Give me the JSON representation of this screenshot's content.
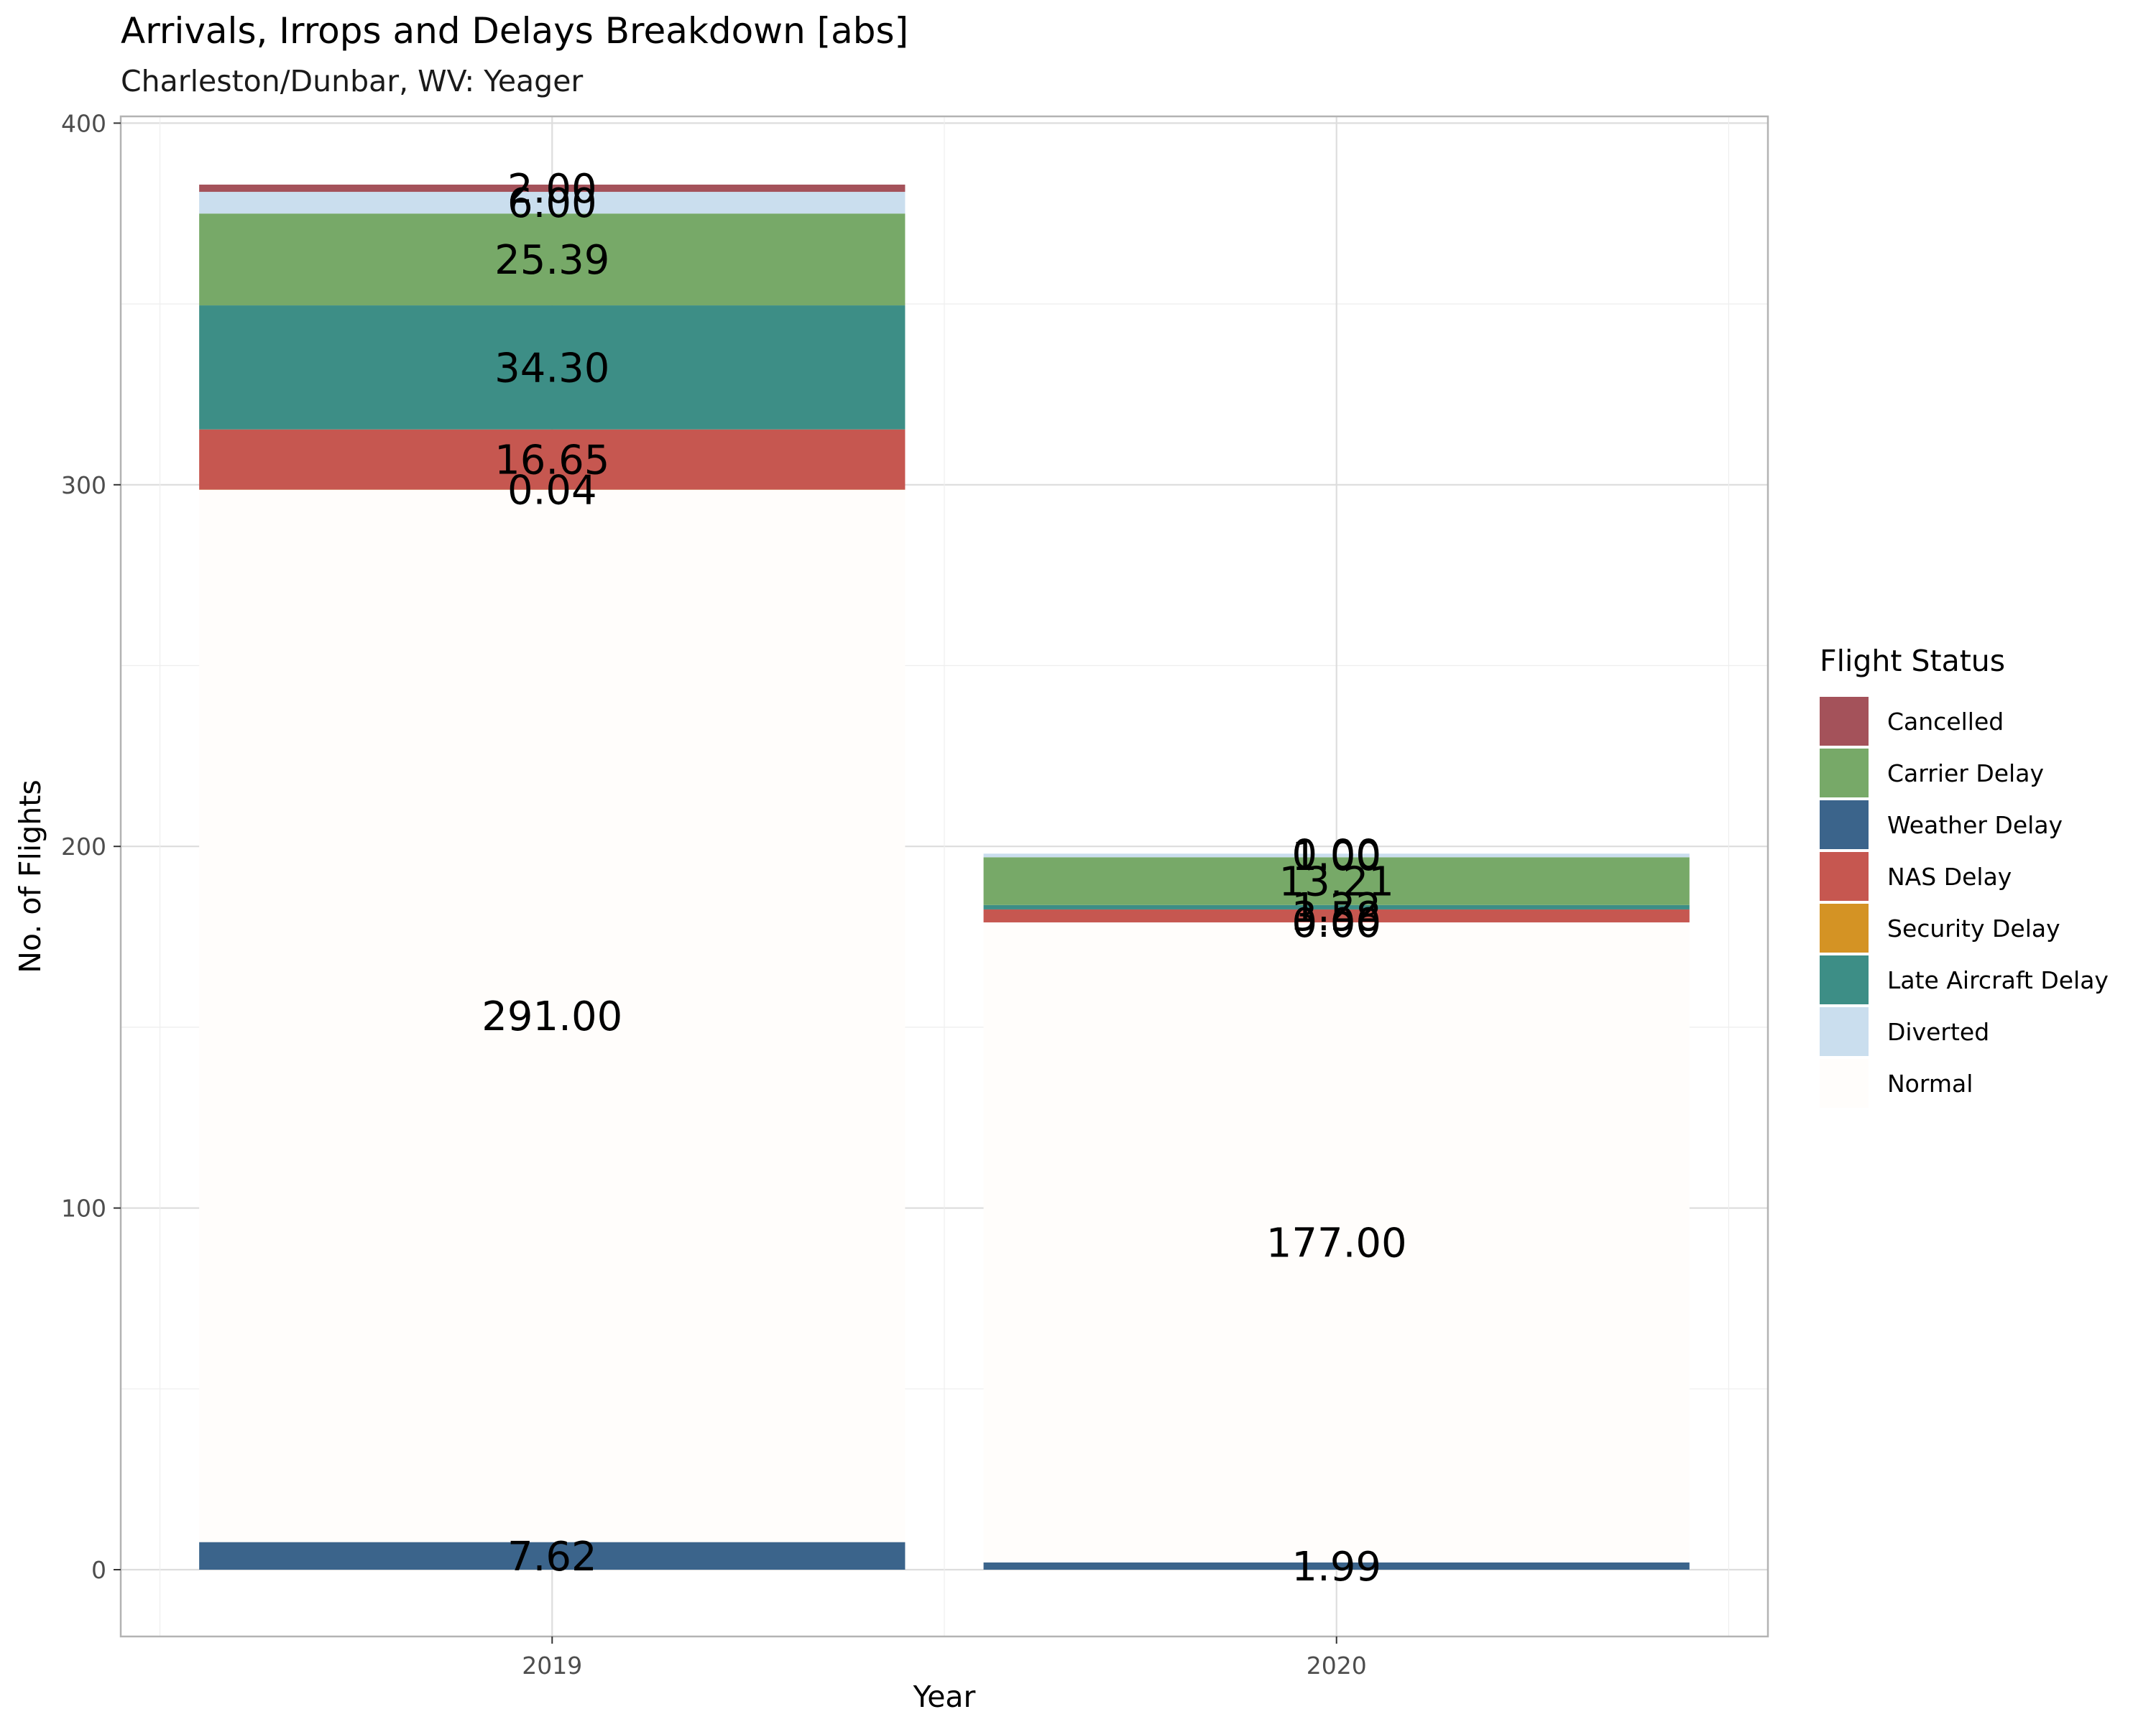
{
  "chart_data": {
    "type": "bar",
    "stacked": true,
    "title": "Arrivals, Irrops and Delays Breakdown [abs]",
    "subtitle": "Charleston/Dunbar, WV: Yeager",
    "xlabel": "Year",
    "ylabel": "No. of Flights",
    "categories": [
      "2019",
      "2020"
    ],
    "ylim": [
      -18,
      402
    ],
    "yticks": [
      0,
      100,
      200,
      300,
      400
    ],
    "grid": true,
    "legend": {
      "title": "Flight Status",
      "position": "right",
      "items": [
        {
          "name": "Cancelled",
          "color": "#a4525a"
        },
        {
          "name": "Carrier Delay",
          "color": "#77a968"
        },
        {
          "name": "Weather Delay",
          "color": "#3b648b"
        },
        {
          "name": "NAS Delay",
          "color": "#c65750"
        },
        {
          "name": "Security Delay",
          "color": "#d49324"
        },
        {
          "name": "Late Aircraft Delay",
          "color": "#3d8e86"
        },
        {
          "name": "Diverted",
          "color": "#cadeee"
        },
        {
          "name": "Normal",
          "color": "#fffdfb"
        }
      ]
    },
    "stack_order": [
      "Weather Delay",
      "Normal",
      "Security Delay",
      "NAS Delay",
      "Late Aircraft Delay",
      "Carrier Delay",
      "Diverted",
      "Cancelled"
    ],
    "series": [
      {
        "name": "Weather Delay",
        "color": "#3b648b",
        "values": [
          7.62,
          1.99
        ],
        "labels": [
          "7.62",
          "1.99"
        ]
      },
      {
        "name": "Normal",
        "color": "#fffdfb",
        "values": [
          291.0,
          177.0
        ],
        "labels": [
          "291.00",
          "177.00"
        ]
      },
      {
        "name": "Security Delay",
        "color": "#d49324",
        "values": [
          0.04,
          0.0
        ],
        "labels": [
          "0.04",
          "0.00"
        ]
      },
      {
        "name": "NAS Delay",
        "color": "#c65750",
        "values": [
          16.65,
          3.58
        ],
        "labels": [
          "16.65",
          "3.58"
        ]
      },
      {
        "name": "Late Aircraft Delay",
        "color": "#3d8e86",
        "values": [
          34.3,
          1.22
        ],
        "labels": [
          "34.30",
          "1.22"
        ]
      },
      {
        "name": "Carrier Delay",
        "color": "#77a968",
        "values": [
          25.39,
          13.21
        ],
        "labels": [
          "25.39",
          "13.21"
        ]
      },
      {
        "name": "Diverted",
        "color": "#cadeee",
        "values": [
          6.0,
          1.0
        ],
        "labels": [
          "6.00",
          "1.00"
        ]
      },
      {
        "name": "Cancelled",
        "color": "#a4525a",
        "values": [
          2.0,
          0.0
        ],
        "labels": [
          "2.00",
          "0.00"
        ]
      }
    ]
  }
}
